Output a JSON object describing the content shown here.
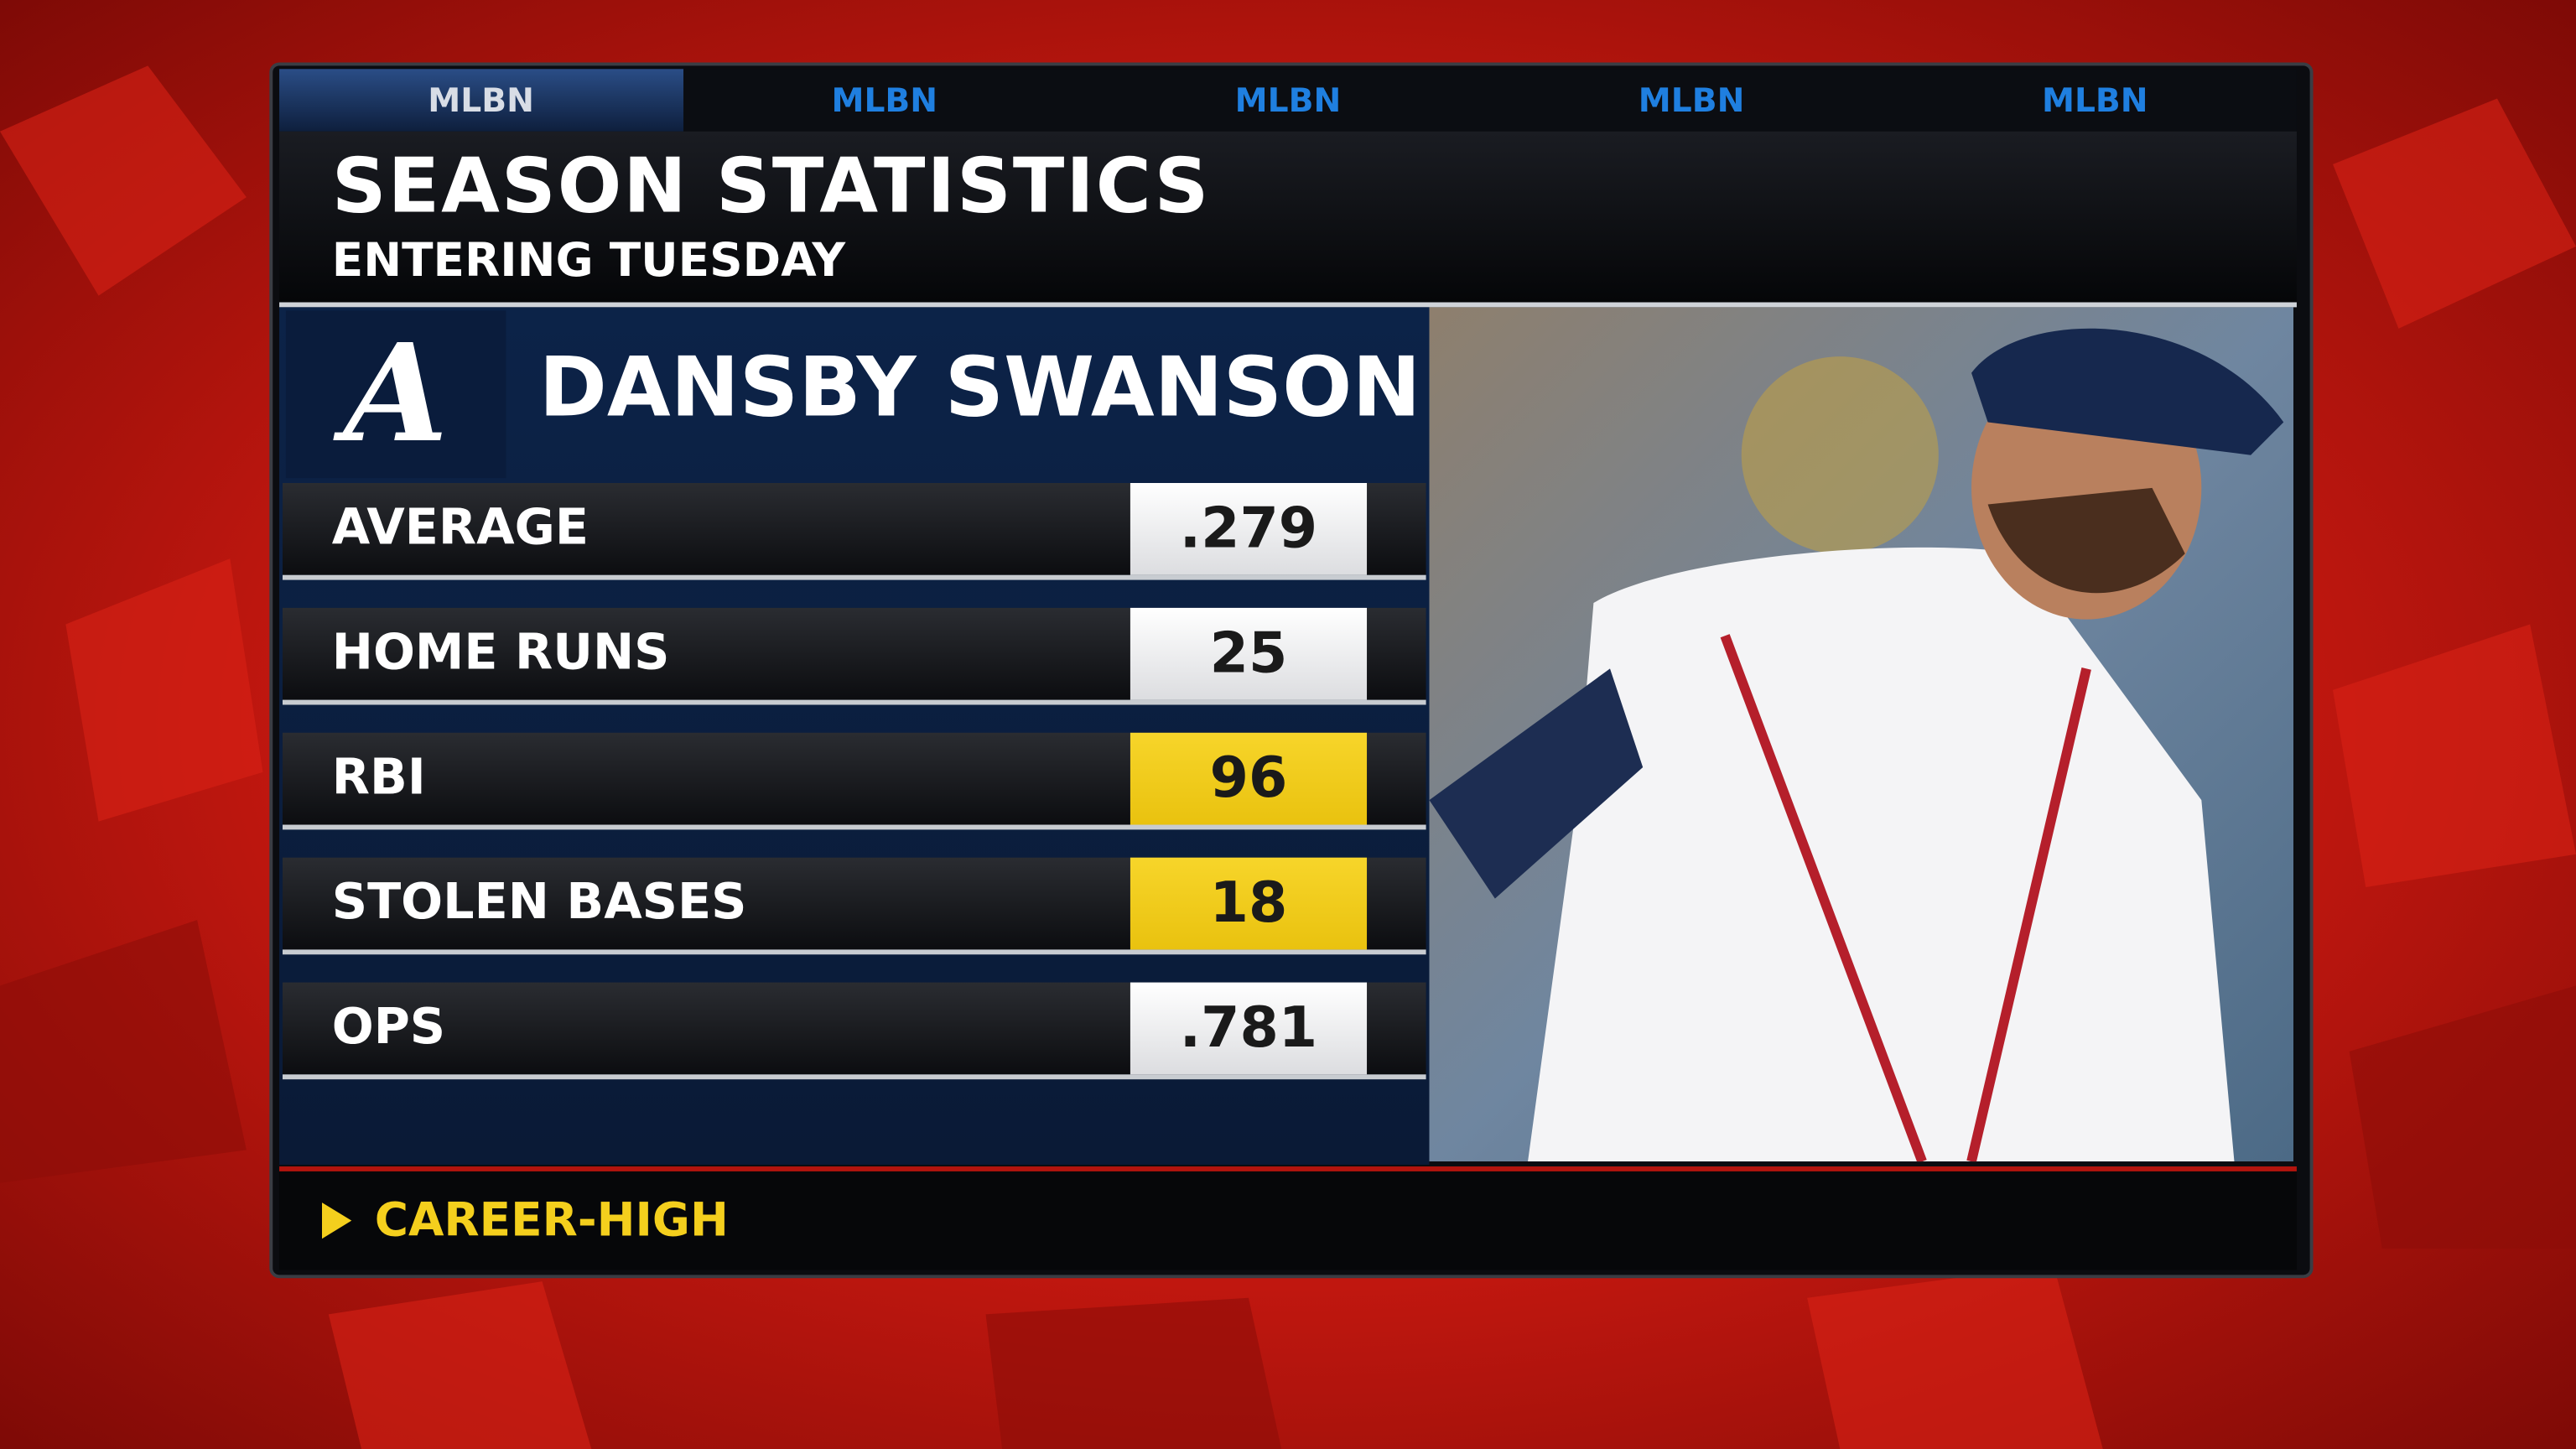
{
  "tabs": [
    "MLBN",
    "MLBN",
    "MLBN",
    "MLBN",
    "MLBN"
  ],
  "header": {
    "title": "SEASON STATISTICS",
    "subtitle": "ENTERING TUESDAY"
  },
  "player": {
    "logo": "A",
    "name": "DANSBY SWANSON"
  },
  "stats": [
    {
      "label": "AVERAGE",
      "value": ".279",
      "highlight": false
    },
    {
      "label": "HOME RUNS",
      "value": "25",
      "highlight": false
    },
    {
      "label": "RBI",
      "value": "96",
      "highlight": true
    },
    {
      "label": "STOLEN BASES",
      "value": "18",
      "highlight": true
    },
    {
      "label": "OPS",
      "value": ".781",
      "highlight": false
    }
  ],
  "footer": {
    "legend": "CAREER-HIGH"
  }
}
